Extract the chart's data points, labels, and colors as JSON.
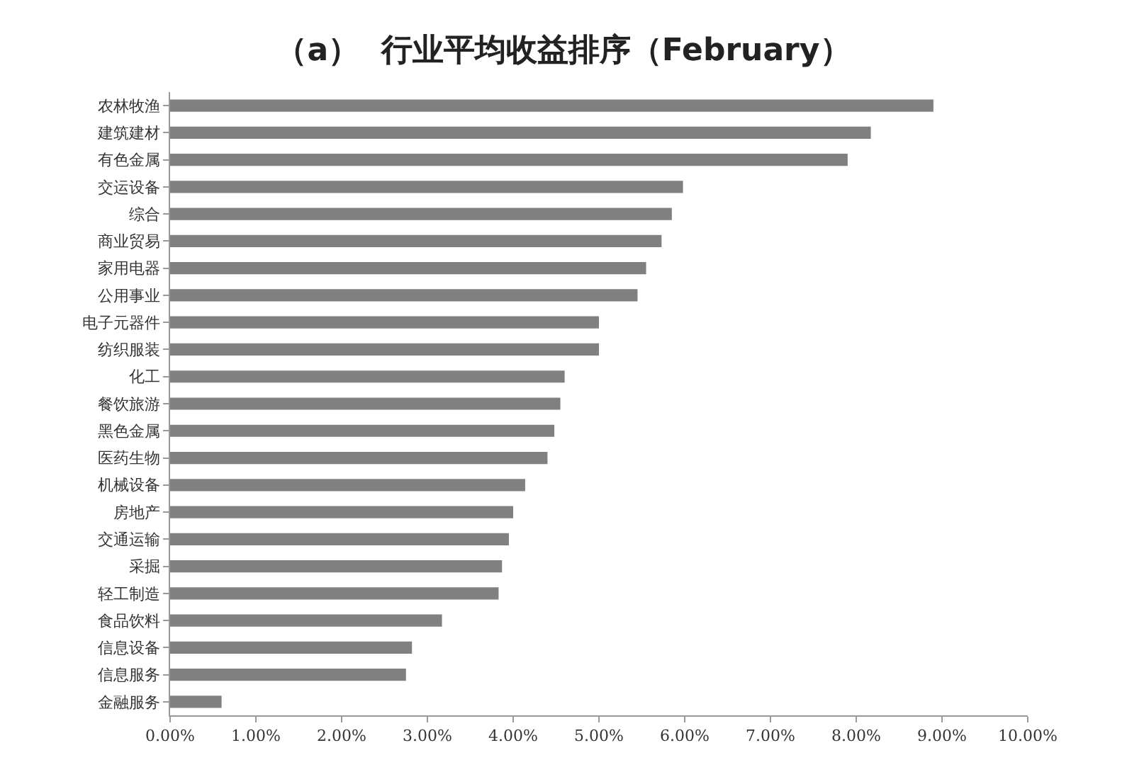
{
  "chart_data": {
    "type": "bar",
    "orientation": "horizontal",
    "title": "（a）  行业平均收益排序（February）",
    "categories": [
      "农林牧渔",
      "建筑建材",
      "有色金属",
      "交运设备",
      "综合",
      "商业贸易",
      "家用电器",
      "公用事业",
      "电子元器件",
      "纺织服装",
      "化工",
      "餐饮旅游",
      "黑色金属",
      "医药生物",
      "机械设备",
      "房地产",
      "交通运输",
      "采掘",
      "轻工制造",
      "食品饮料",
      "信息设备",
      "信息服务",
      "金融服务"
    ],
    "values": [
      8.9,
      8.17,
      7.9,
      5.98,
      5.85,
      5.73,
      5.55,
      5.45,
      5.0,
      5.0,
      4.6,
      4.55,
      4.48,
      4.4,
      4.14,
      4.0,
      3.95,
      3.87,
      3.83,
      3.17,
      2.82,
      2.75,
      0.6
    ],
    "color": "#808080",
    "xlim": [
      0,
      10
    ],
    "xticks": [
      {
        "value": 0,
        "label": "0.00%"
      },
      {
        "value": 1,
        "label": "1.00%"
      },
      {
        "value": 2,
        "label": "2.00%"
      },
      {
        "value": 3,
        "label": "3.00%"
      },
      {
        "value": 4,
        "label": "4.00%"
      },
      {
        "value": 5,
        "label": "5.00%"
      },
      {
        "value": 6,
        "label": "6.00%"
      },
      {
        "value": 7,
        "label": "7.00%"
      },
      {
        "value": 8,
        "label": "8.00%"
      },
      {
        "value": 9,
        "label": "9.00%"
      },
      {
        "value": 10,
        "label": "10.00%"
      }
    ],
    "grid": false,
    "legend": false
  }
}
